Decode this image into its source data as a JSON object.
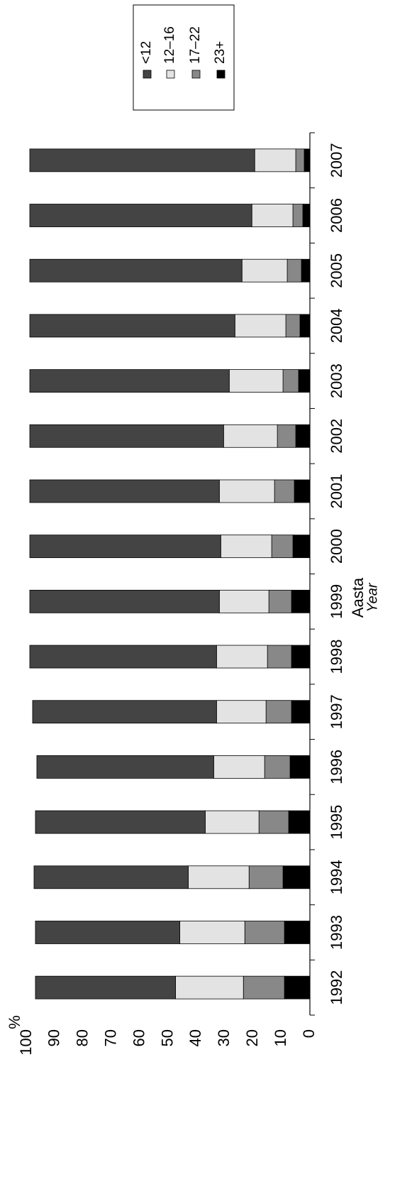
{
  "chart_data": {
    "type": "bar",
    "stacked": true,
    "orientation": "horizontal",
    "categories": [
      "1992",
      "1993",
      "1994",
      "1995",
      "1996",
      "1997",
      "1998",
      "1999",
      "2000",
      "2001",
      "2002",
      "2003",
      "2004",
      "2005",
      "2006",
      "2007"
    ],
    "series": [
      {
        "name": "23+",
        "color": "#000000",
        "values": [
          9.0,
          9.0,
          9.5,
          7.5,
          7.0,
          6.5,
          6.5,
          6.5,
          6.0,
          5.5,
          5.0,
          4.0,
          3.5,
          3.0,
          2.5,
          2.0
        ]
      },
      {
        "name": "17–22",
        "color": "#888888",
        "values": [
          14.5,
          14.0,
          12.0,
          10.5,
          9.0,
          9.0,
          8.5,
          8.0,
          7.5,
          7.0,
          6.5,
          5.5,
          5.0,
          5.0,
          3.5,
          3.0
        ]
      },
      {
        "name": "12–16",
        "color": "#e3e3e3",
        "values": [
          24.0,
          23.0,
          21.5,
          19.0,
          18.0,
          17.5,
          18.0,
          17.5,
          18.0,
          19.5,
          19.0,
          19.0,
          18.0,
          16.0,
          14.5,
          14.5
        ]
      },
      {
        "name": "<12",
        "color": "#444444",
        "values": [
          49.5,
          51.0,
          54.5,
          60.0,
          62.5,
          65.0,
          66.0,
          67.0,
          67.5,
          67.0,
          68.5,
          70.5,
          72.5,
          75.0,
          78.5,
          79.5
        ]
      }
    ],
    "xlabel": "Aasta",
    "xlabel_secondary": "Year",
    "ylabel": "%",
    "ylim": [
      0,
      100
    ],
    "y_ticks": [
      0,
      10,
      20,
      30,
      40,
      50,
      60,
      70,
      80,
      90,
      100
    ],
    "grid": false,
    "legend_position": "top-right"
  }
}
